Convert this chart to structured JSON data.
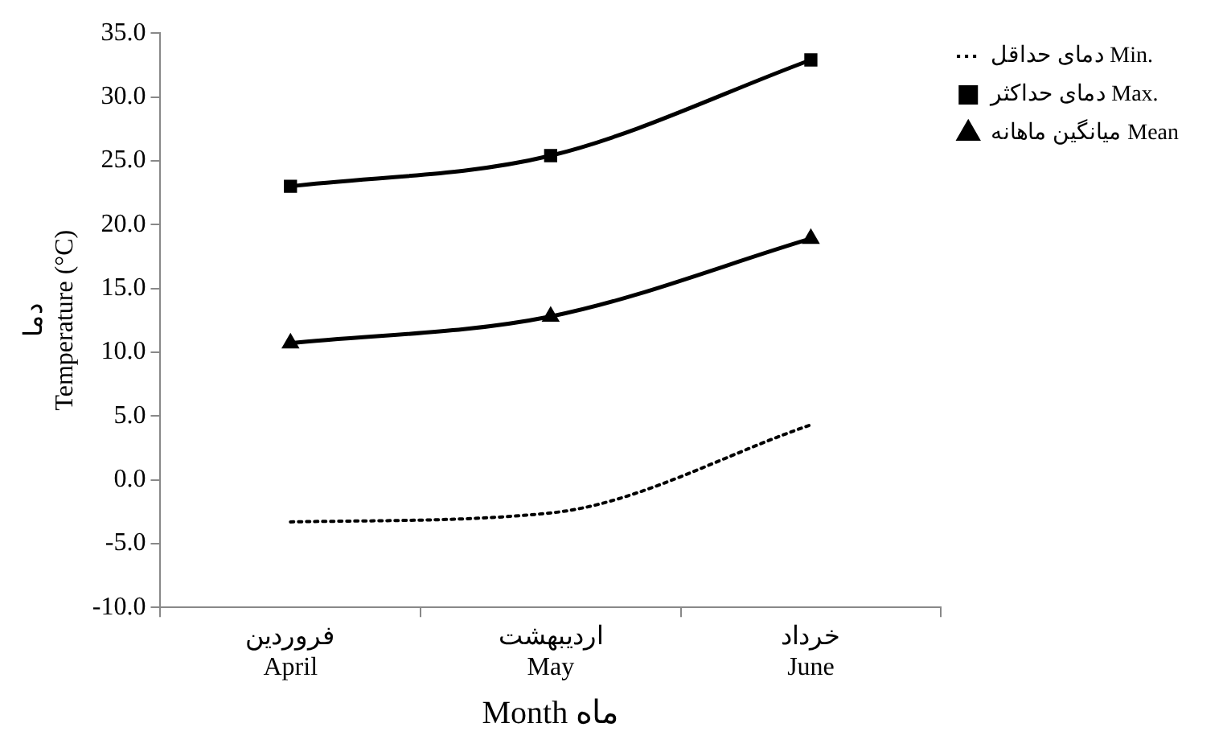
{
  "chart_data": {
    "type": "line",
    "xlabel": "Month ماه",
    "ylabel": "دما\nTemperature (°C)",
    "categories": [
      "فروردین\nApril",
      "اردیبهشت\nMay",
      "خرداد\nJune"
    ],
    "series": [
      {
        "name": "دمای حداقل Min.",
        "color": "#000000",
        "values": [
          -3.3,
          -2.6,
          4.3
        ],
        "line_style": "dotted",
        "marker": "none"
      },
      {
        "name": "دمای حداکثر Max.",
        "color": "#000000",
        "values": [
          23.0,
          25.4,
          32.9
        ],
        "line_style": "solid",
        "marker": "square"
      },
      {
        "name": "میانگین ماهانه Mean",
        "color": "#000000",
        "values": [
          10.7,
          12.8,
          18.9
        ],
        "line_style": "solid",
        "marker": "triangle"
      }
    ],
    "ylim": [
      -10,
      35
    ],
    "yticks": [
      {
        "value": -10,
        "label": "-10.0"
      },
      {
        "value": -5,
        "label": "-5.0"
      },
      {
        "value": 0,
        "label": "0.0"
      },
      {
        "value": 5,
        "label": "5.0"
      },
      {
        "value": 10,
        "label": "10.0"
      },
      {
        "value": 15,
        "label": "15.0"
      },
      {
        "value": 20,
        "label": "20.0"
      },
      {
        "value": 25,
        "label": "25.0"
      },
      {
        "value": 30,
        "label": "30.0"
      },
      {
        "value": 35,
        "label": "35.0"
      }
    ],
    "grid": false,
    "legend": "right"
  }
}
